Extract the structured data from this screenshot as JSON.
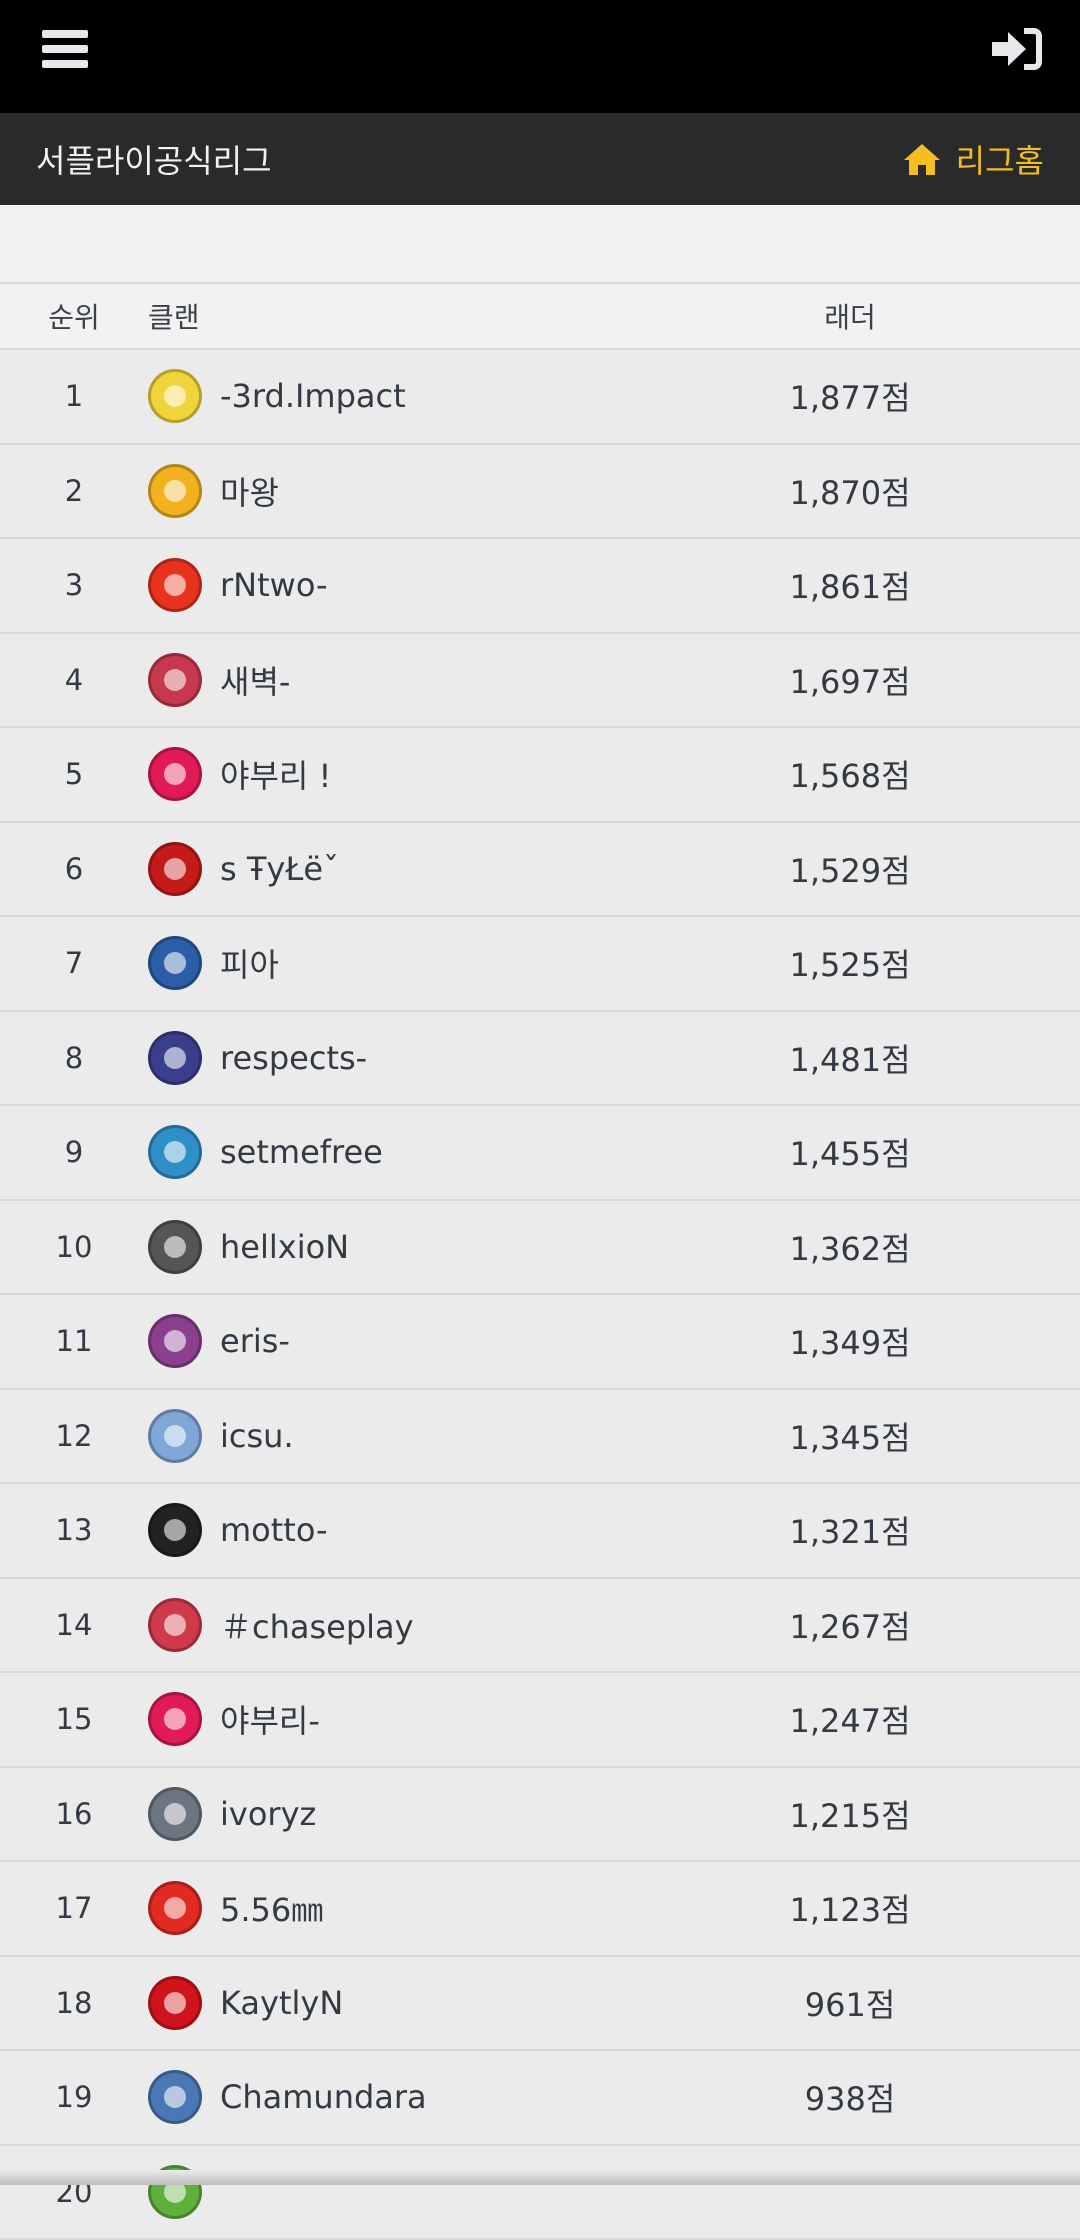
{
  "header": {
    "title": "서플라이공식리그",
    "home_label": "리그홈",
    "accent": "#f5bd24"
  },
  "table": {
    "columns": {
      "rank": "순위",
      "clan": "클랜",
      "ladder": "래더"
    },
    "rows": [
      {
        "rank": "1",
        "name": "-3rd.Impact",
        "score": "1,877점",
        "icon_color": "#f0d43a"
      },
      {
        "rank": "2",
        "name": "마왕",
        "score": "1,870점",
        "icon_color": "#f2b21f"
      },
      {
        "rank": "3",
        "name": "rNtwo-",
        "score": "1,861점",
        "icon_color": "#e8321e"
      },
      {
        "rank": "4",
        "name": "새벽-",
        "score": "1,697점",
        "icon_color": "#c8384c"
      },
      {
        "rank": "5",
        "name": "야부리 !",
        "score": "1,568점",
        "icon_color": "#e01b55"
      },
      {
        "rank": "6",
        "name": "ꜱ ŦyŁëˇ",
        "score": "1,529점",
        "icon_color": "#c41a1a"
      },
      {
        "rank": "7",
        "name": "피아",
        "score": "1,525점",
        "icon_color": "#2c5ea8"
      },
      {
        "rank": "8",
        "name": "respects-",
        "score": "1,481점",
        "icon_color": "#3a3f8c"
      },
      {
        "rank": "9",
        "name": "setmefree",
        "score": "1,455점",
        "icon_color": "#2f8fc7"
      },
      {
        "rank": "10",
        "name": "hellxioN",
        "score": "1,362점",
        "icon_color": "#555555"
      },
      {
        "rank": "11",
        "name": "eris-",
        "score": "1,349점",
        "icon_color": "#8a3f8f"
      },
      {
        "rank": "12",
        "name": "icsu.",
        "score": "1,345점",
        "icon_color": "#7fa7d8"
      },
      {
        "rank": "13",
        "name": "motto-",
        "score": "1,321점",
        "icon_color": "#222222"
      },
      {
        "rank": "14",
        "name": "＃chaseplay",
        "score": "1,267점",
        "icon_color": "#cf3a4a"
      },
      {
        "rank": "15",
        "name": "야부리-",
        "score": "1,247점",
        "icon_color": "#e01b55"
      },
      {
        "rank": "16",
        "name": "ivoryz",
        "score": "1,215점",
        "icon_color": "#6b7680"
      },
      {
        "rank": "17",
        "name": "5.56㎜",
        "score": "1,123점",
        "icon_color": "#e02a22"
      },
      {
        "rank": "18",
        "name": "KaytlyN",
        "score": "961점",
        "icon_color": "#d0141c"
      },
      {
        "rank": "19",
        "name": "Chamundara",
        "score": "938점",
        "icon_color": "#4a78b5"
      },
      {
        "rank": "20",
        "name": "",
        "score": "",
        "icon_color": "#5fb03a"
      }
    ]
  }
}
